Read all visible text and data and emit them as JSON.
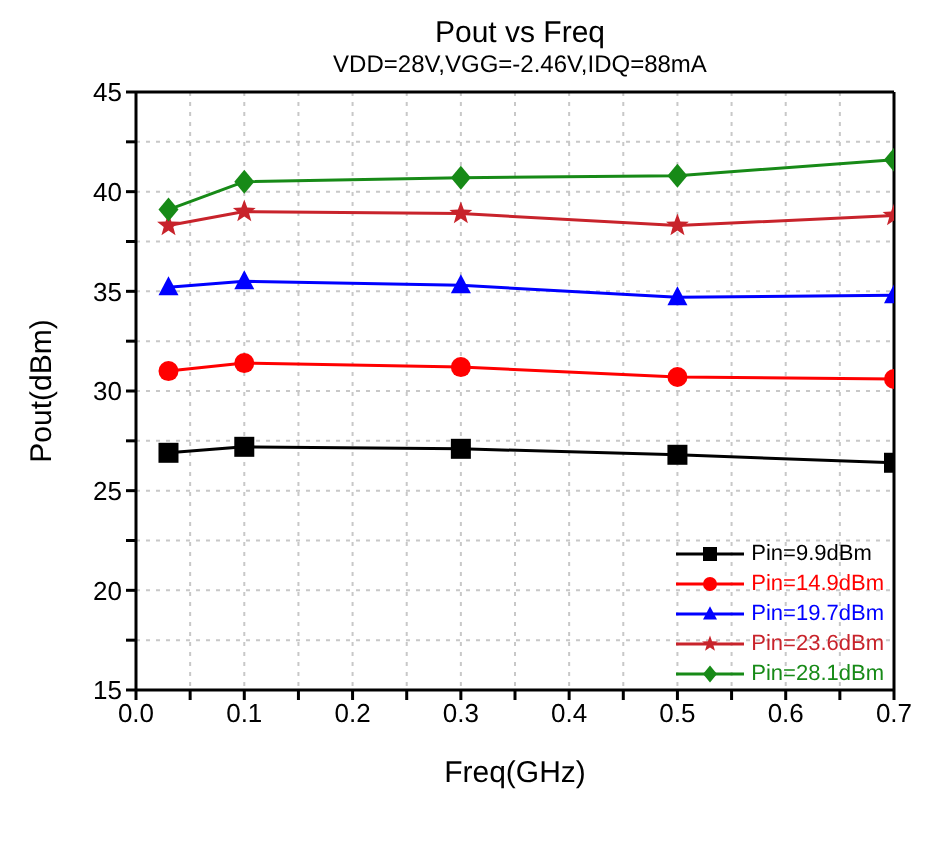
{
  "chart_data": {
    "type": "line",
    "title": "Pout vs  Freq",
    "subtitle": "VDD=28V,VGG=-2.46V,IDQ=88mA",
    "xlabel": "Freq(GHz)",
    "ylabel": "Pout(dBm)",
    "x": [
      0.03,
      0.1,
      0.3,
      0.5,
      0.7
    ],
    "series": [
      {
        "name": "Pin=9.9dBm",
        "color": "#000000",
        "marker": "square",
        "values": [
          26.9,
          27.2,
          27.1,
          26.8,
          26.4
        ]
      },
      {
        "name": "Pin=14.9dBm",
        "color": "#ff0000",
        "marker": "circle",
        "values": [
          31.0,
          31.4,
          31.2,
          30.7,
          30.6
        ]
      },
      {
        "name": "Pin=19.7dBm",
        "color": "#0000ff",
        "marker": "triangle",
        "values": [
          35.2,
          35.5,
          35.3,
          34.7,
          34.8
        ]
      },
      {
        "name": "Pin=23.6dBm",
        "color": "#c8232b",
        "marker": "star",
        "values": [
          38.3,
          39.0,
          38.9,
          38.3,
          38.8
        ]
      },
      {
        "name": "Pin=28.1dBm",
        "color": "#178a17",
        "marker": "diamond",
        "values": [
          39.1,
          40.5,
          40.7,
          40.8,
          41.6
        ]
      }
    ],
    "xlim": [
      0,
      0.7
    ],
    "xticks": [
      {
        "value": 0,
        "label": "0.0"
      },
      {
        "value": 0.05,
        "label": null
      },
      0.1,
      {
        "value": 0.15,
        "label": null
      },
      0.2,
      {
        "value": 0.25,
        "label": null
      },
      0.3,
      {
        "value": 0.35,
        "label": null
      },
      0.4,
      {
        "value": 0.45,
        "label": null
      },
      0.5,
      {
        "value": 0.55,
        "label": null
      },
      0.6,
      {
        "value": 0.65,
        "label": null
      },
      0.7
    ],
    "ylim": [
      15,
      45
    ],
    "yticks": [
      15,
      {
        "value": 17.5,
        "label": null
      },
      20,
      {
        "value": 22.5,
        "label": null
      },
      25,
      {
        "value": 27.5,
        "label": null
      },
      30,
      {
        "value": 32.5,
        "label": null
      },
      35,
      {
        "value": 37.5,
        "label": null
      },
      40,
      {
        "value": 42.5,
        "label": null
      },
      45
    ],
    "grid": true,
    "legend": "bottom right",
    "line_style": "solid"
  }
}
